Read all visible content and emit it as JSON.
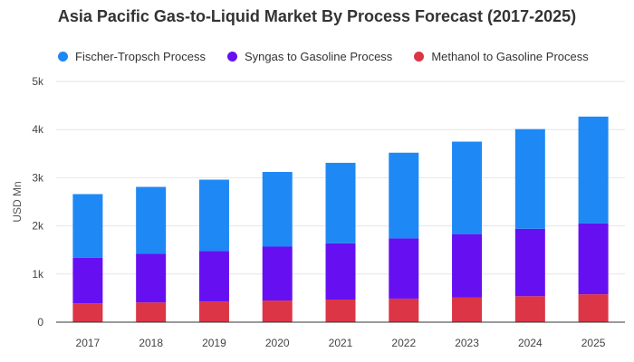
{
  "chart_data": {
    "type": "bar",
    "stacked": true,
    "title": "Asia Pacific Gas-to-Liquid Market By Process Forecast (2017-2025)",
    "xlabel": "",
    "ylabel": "USD Mn",
    "ylim": [
      0,
      5000
    ],
    "yticks": [
      0,
      1000,
      2000,
      3000,
      4000,
      5000
    ],
    "ytick_labels": [
      "0",
      "1k",
      "2k",
      "3k",
      "4k",
      "5k"
    ],
    "categories": [
      "2017",
      "2018",
      "2019",
      "2020",
      "2021",
      "2022",
      "2023",
      "2024",
      "2025"
    ],
    "series": [
      {
        "name": "Methanol to Gasoline Process",
        "color": "#dc3545",
        "values": [
          390,
          410,
          430,
          450,
          470,
          490,
          510,
          540,
          580
        ]
      },
      {
        "name": "Syngas to Gasoline Process",
        "color": "#6610f2",
        "values": [
          950,
          1010,
          1050,
          1120,
          1170,
          1250,
          1320,
          1400,
          1470
        ]
      },
      {
        "name": "Fischer-Tropsch Process",
        "color": "#1e88f5",
        "values": [
          1320,
          1390,
          1480,
          1550,
          1670,
          1780,
          1920,
          2070,
          2220
        ]
      }
    ],
    "legend_order": [
      "Fischer-Tropsch Process",
      "Syngas to Gasoline Process",
      "Methanol to Gasoline Process"
    ],
    "legend_position": "top-left",
    "grid": true
  }
}
